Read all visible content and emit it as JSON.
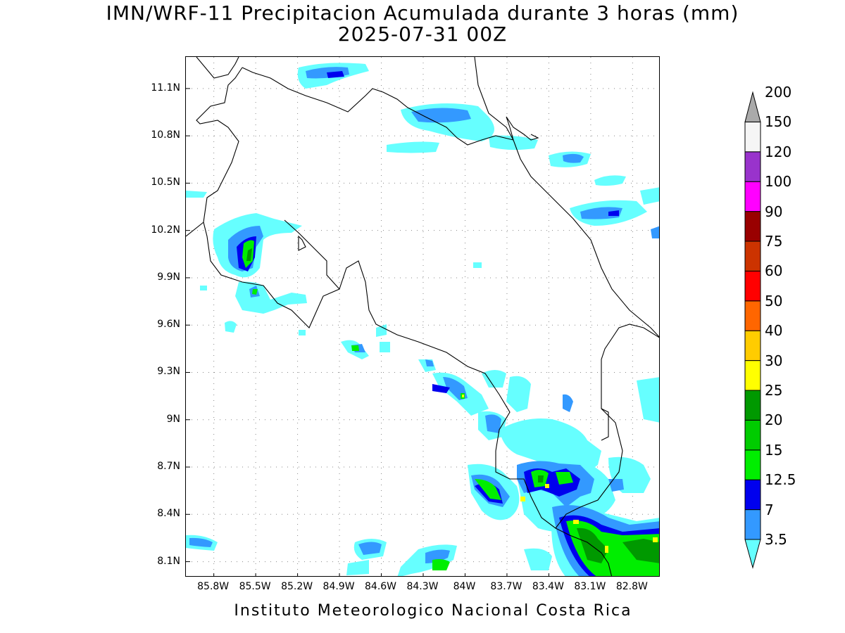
{
  "title": "IMN/WRF-11 Precipitacion Acumulada durante 3 horas (mm)",
  "subtitle": "2025-07-31 00Z",
  "footer": "Instituto Meteorologico Nacional Costa Rica",
  "map": {
    "lon_range": [
      -86.0,
      -82.6
    ],
    "lat_range": [
      8.0,
      11.3
    ],
    "lat_ticks": [
      {
        "value": 11.1,
        "label": "11.1N"
      },
      {
        "value": 10.8,
        "label": "10.8N"
      },
      {
        "value": 10.5,
        "label": "10.5N"
      },
      {
        "value": 10.2,
        "label": "10.2N"
      },
      {
        "value": 9.9,
        "label": "9.9N"
      },
      {
        "value": 9.6,
        "label": "9.6N"
      },
      {
        "value": 9.3,
        "label": "9.3N"
      },
      {
        "value": 9.0,
        "label": "9N"
      },
      {
        "value": 8.7,
        "label": "8.7N"
      },
      {
        "value": 8.4,
        "label": "8.4N"
      },
      {
        "value": 8.1,
        "label": "8.1N"
      }
    ],
    "lon_ticks": [
      {
        "value": -85.8,
        "label": "85.8W"
      },
      {
        "value": -85.5,
        "label": "85.5W"
      },
      {
        "value": -85.2,
        "label": "85.2W"
      },
      {
        "value": -84.9,
        "label": "84.9W"
      },
      {
        "value": -84.6,
        "label": "84.6W"
      },
      {
        "value": -84.3,
        "label": "84.3W"
      },
      {
        "value": -84.0,
        "label": "84W"
      },
      {
        "value": -83.7,
        "label": "83.7W"
      },
      {
        "value": -83.4,
        "label": "83.4W"
      },
      {
        "value": -83.1,
        "label": "83.1W"
      },
      {
        "value": -82.8,
        "label": "82.8W"
      }
    ],
    "grid": "dotted"
  },
  "legend": {
    "unit": "mm",
    "levels": [
      "3.5",
      "7",
      "12.5",
      "15",
      "20",
      "25",
      "30",
      "40",
      "50",
      "60",
      "75",
      "90",
      "100",
      "120",
      "150",
      "200"
    ],
    "colors": [
      "#66ffff",
      "#3399ff",
      "#0000ee",
      "#00ee00",
      "#00cc00",
      "#009900",
      "#ffff00",
      "#ffcc00",
      "#ff6600",
      "#ff0000",
      "#cc3300",
      "#990000",
      "#ff00ff",
      "#9933cc",
      "#f5f5f5",
      "#aaaaaa"
    ]
  }
}
